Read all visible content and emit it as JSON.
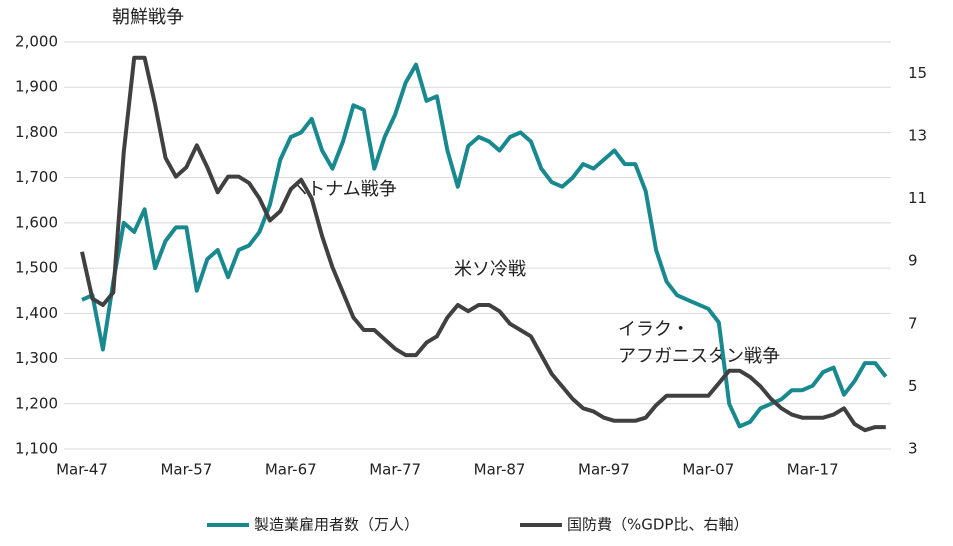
{
  "chart_data": {
    "type": "line",
    "x": [
      1947,
      1948,
      1949,
      1950,
      1951,
      1952,
      1953,
      1954,
      1955,
      1956,
      1957,
      1958,
      1959,
      1960,
      1961,
      1962,
      1963,
      1964,
      1965,
      1966,
      1967,
      1968,
      1969,
      1970,
      1971,
      1972,
      1973,
      1974,
      1975,
      1976,
      1977,
      1978,
      1979,
      1980,
      1981,
      1982,
      1983,
      1984,
      1985,
      1986,
      1987,
      1988,
      1989,
      1990,
      1991,
      1992,
      1993,
      1994,
      1995,
      1996,
      1997,
      1998,
      1999,
      2000,
      2001,
      2002,
      2003,
      2004,
      2005,
      2006,
      2007,
      2008,
      2009,
      2010,
      2011,
      2012,
      2013,
      2014,
      2015,
      2016,
      2017,
      2018,
      2019,
      2020,
      2021,
      2022,
      2023,
      2024
    ],
    "series": [
      {
        "name": "製造業雇用者数（万人）",
        "color": "#17898f",
        "axis": "y",
        "values": [
          1430,
          1440,
          1320,
          1470,
          1600,
          1580,
          1630,
          1500,
          1560,
          1590,
          1590,
          1450,
          1520,
          1540,
          1480,
          1540,
          1550,
          1580,
          1640,
          1740,
          1790,
          1800,
          1830,
          1760,
          1720,
          1780,
          1860,
          1850,
          1720,
          1790,
          1840,
          1910,
          1950,
          1870,
          1880,
          1760,
          1680,
          1770,
          1790,
          1780,
          1760,
          1790,
          1800,
          1780,
          1720,
          1690,
          1680,
          1700,
          1730,
          1720,
          1740,
          1760,
          1730,
          1730,
          1670,
          1540,
          1470,
          1440,
          1430,
          1420,
          1410,
          1380,
          1200,
          1150,
          1160,
          1190,
          1200,
          1210,
          1230,
          1230,
          1240,
          1270,
          1280,
          1220,
          1250,
          1290,
          1290,
          1260
        ]
      },
      {
        "name": "国防費（%GDP比、右軸）",
        "color": "#404040",
        "axis": "y2",
        "values": [
          9.3,
          7.8,
          7.6,
          8.0,
          12.5,
          15.5,
          15.5,
          14.0,
          12.3,
          11.7,
          12.0,
          12.7,
          12.0,
          11.2,
          11.7,
          11.7,
          11.5,
          11.0,
          10.3,
          10.6,
          11.3,
          11.6,
          11.0,
          9.8,
          8.8,
          8.0,
          7.2,
          6.8,
          6.8,
          6.5,
          6.2,
          6.0,
          6.0,
          6.4,
          6.6,
          7.2,
          7.6,
          7.4,
          7.6,
          7.6,
          7.4,
          7.0,
          6.8,
          6.6,
          6.0,
          5.4,
          5.0,
          4.6,
          4.3,
          4.2,
          4.0,
          3.9,
          3.9,
          3.9,
          4.0,
          4.4,
          4.7,
          4.7,
          4.7,
          4.7,
          4.7,
          5.1,
          5.5,
          5.5,
          5.3,
          5.0,
          4.6,
          4.3,
          4.1,
          4.0,
          4.0,
          4.0,
          4.1,
          4.3,
          3.8,
          3.6,
          3.7,
          3.7
        ]
      }
    ],
    "xlim": [
      1947,
      2024.5
    ],
    "xticks": [
      {
        "value": 1947,
        "label": "Mar-47"
      },
      {
        "value": 1957,
        "label": "Mar-57"
      },
      {
        "value": 1967,
        "label": "Mar-67"
      },
      {
        "value": 1977,
        "label": "Mar-77"
      },
      {
        "value": 1987,
        "label": "Mar-87"
      },
      {
        "value": 1997,
        "label": "Mar-97"
      },
      {
        "value": 2007,
        "label": "Mar-07"
      },
      {
        "value": 2017,
        "label": "Mar-17"
      }
    ],
    "ylim": [
      1100,
      2000
    ],
    "yticks": [
      {
        "value": 1100,
        "label": "1,100"
      },
      {
        "value": 1200,
        "label": "1,200"
      },
      {
        "value": 1300,
        "label": "1,300"
      },
      {
        "value": 1400,
        "label": "1,400"
      },
      {
        "value": 1500,
        "label": "1,500"
      },
      {
        "value": 1600,
        "label": "1,600"
      },
      {
        "value": 1700,
        "label": "1,700"
      },
      {
        "value": 1800,
        "label": "1,800"
      },
      {
        "value": 1900,
        "label": "1,900"
      },
      {
        "value": 2000,
        "label": "2,000"
      }
    ],
    "y2lim": [
      3,
      16
    ],
    "y2ticks": [
      3,
      5,
      7,
      9,
      11,
      13,
      15
    ],
    "grid": true,
    "annotations": [
      "朝鮮戦争",
      "ベトナム戦争",
      "米ソ冷戦",
      "イラク・",
      "アフガニスタン戦争"
    ]
  }
}
